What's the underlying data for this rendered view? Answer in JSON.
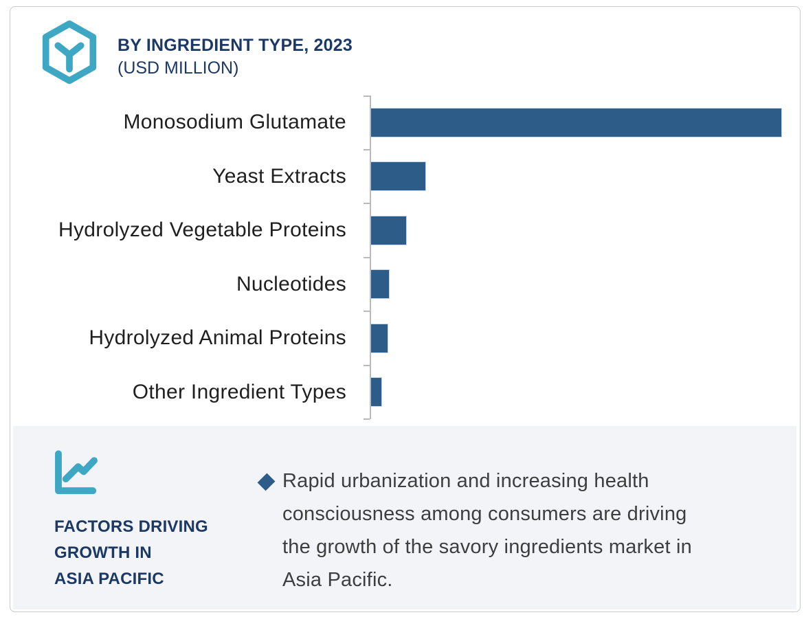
{
  "colors": {
    "accent_teal": "#3ea8c4",
    "bar_blue": "#2d5c88",
    "navy": "#1c3966",
    "panel_bg": "#f2f4f7",
    "axis_gray": "#b9babc",
    "body_text": "#3e3e3e",
    "label_text": "#1f1f1f",
    "card_border": "#c9cbcd"
  },
  "header": {
    "title": "BY INGREDIENT TYPE, 2023",
    "subtitle": "(USD MILLION)",
    "logo_icon": "hexagon-y-logo"
  },
  "chart_data": {
    "type": "bar",
    "orientation": "horizontal",
    "title": "BY INGREDIENT TYPE, 2023 (USD MILLION)",
    "categories": [
      "Monosodium Glutamate",
      "Yeast Extracts",
      "Hydrolyzed Vegetable Proteins",
      "Nucleotides",
      "Hydrolyzed Animal Proteins",
      "Other Ingredient Types"
    ],
    "values": [
      597,
      79,
      51,
      26,
      24,
      15
    ],
    "value_note": "no numeric axis labels shown; values estimated as relative bar lengths",
    "xlim": [
      0,
      625
    ],
    "xlabel": "",
    "ylabel": "",
    "grid": false,
    "legend": false,
    "bar_color": "#2d5c88",
    "tick_count": 7
  },
  "panel": {
    "icon": "line-chart-icon",
    "heading": "FACTORS DRIVING\nGROWTH IN\nASIA PACIFIC",
    "bullet_icon": "diamond-bullet",
    "bullet_text": "Rapid urbanization and increasing health\nconsciousness among consumers are driving\nthe growth of the savory ingredients market in\nAsia Pacific."
  }
}
